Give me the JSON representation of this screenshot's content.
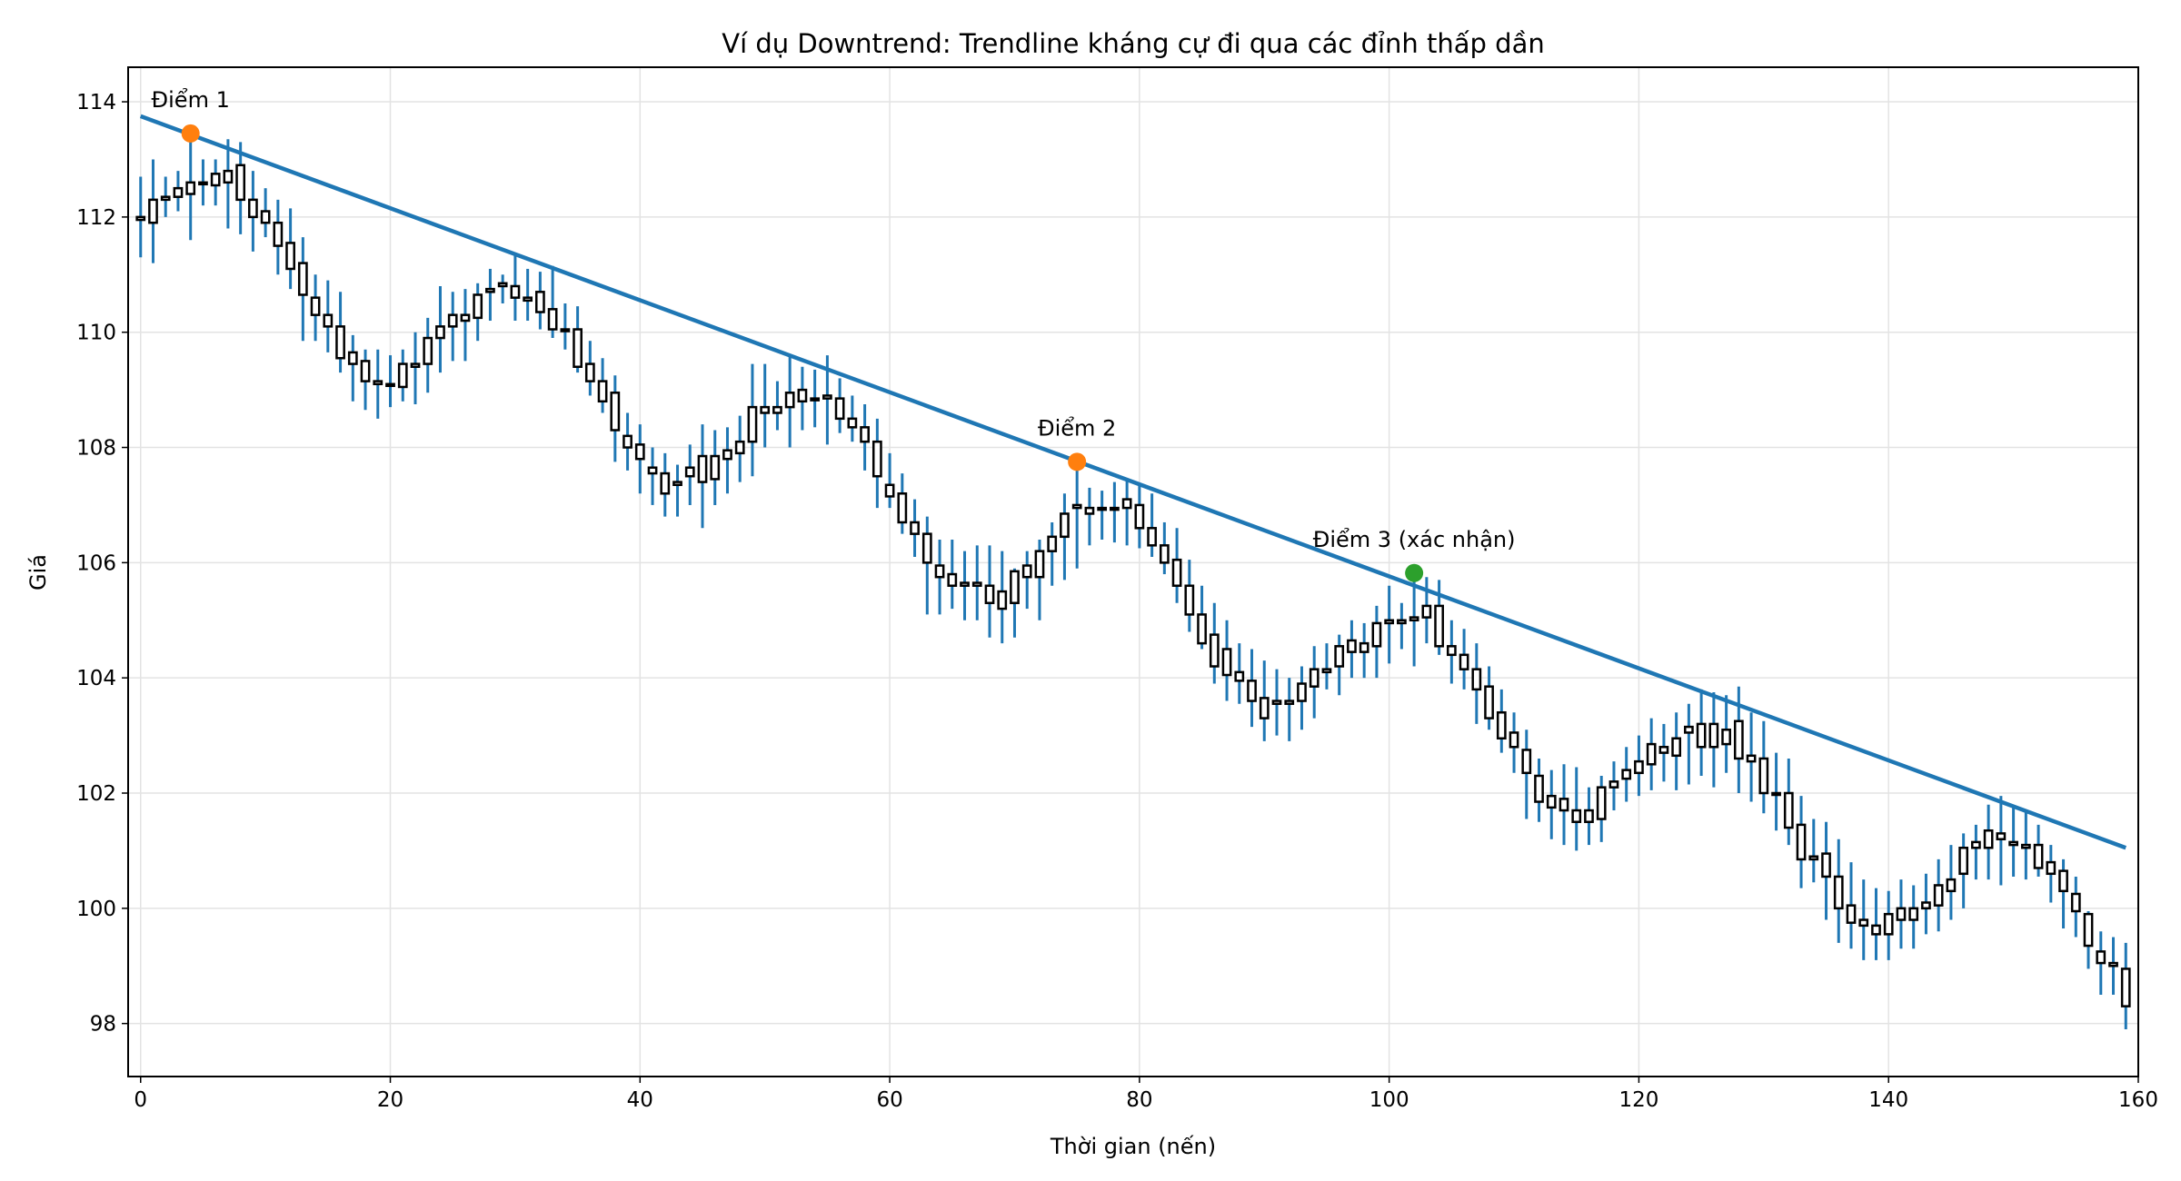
{
  "chart_data": {
    "type": "candlestick",
    "title": "Ví dụ Downtrend: Trendline kháng cự đi qua các đỉnh thấp dần",
    "xlabel": "Thời gian (nến)",
    "ylabel": "Giá",
    "xlim": [
      -1,
      160
    ],
    "ylim": [
      97.08,
      114.6
    ],
    "xticks": [
      0,
      20,
      40,
      60,
      80,
      100,
      120,
      140,
      160
    ],
    "yticks": [
      98,
      100,
      102,
      104,
      106,
      108,
      110,
      112,
      114
    ],
    "grid": true,
    "colors": {
      "wick": "#1f77b4",
      "body_edge": "#000000",
      "body_fill": "#ffffff",
      "trendline": "#1f77b4",
      "point_1": "#ff7f0e",
      "point_2": "#ff7f0e",
      "point_3": "#2ca02c",
      "grid": "#e3e3e3"
    },
    "candle_fields": [
      "open",
      "high",
      "low",
      "close"
    ],
    "candles": [
      [
        111.95,
        112.7,
        111.3,
        112.0
      ],
      [
        111.9,
        113.0,
        111.2,
        112.3
      ],
      [
        112.3,
        112.7,
        112.0,
        112.35
      ],
      [
        112.35,
        112.8,
        112.1,
        112.5
      ],
      [
        112.4,
        113.45,
        111.6,
        112.6
      ],
      [
        112.6,
        113.0,
        112.2,
        112.6
      ],
      [
        112.55,
        113.0,
        112.2,
        112.75
      ],
      [
        112.6,
        113.35,
        111.8,
        112.8
      ],
      [
        112.9,
        113.3,
        111.7,
        112.3
      ],
      [
        112.3,
        112.8,
        111.4,
        112.0
      ],
      [
        112.1,
        112.5,
        111.65,
        111.9
      ],
      [
        111.9,
        112.3,
        111.0,
        111.5
      ],
      [
        111.55,
        112.15,
        110.75,
        111.1
      ],
      [
        111.2,
        111.65,
        109.85,
        110.65
      ],
      [
        110.6,
        111.0,
        109.85,
        110.3
      ],
      [
        110.3,
        110.9,
        109.65,
        110.1
      ],
      [
        110.1,
        110.7,
        109.3,
        109.55
      ],
      [
        109.65,
        109.95,
        108.8,
        109.45
      ],
      [
        109.5,
        109.7,
        108.65,
        109.15
      ],
      [
        109.15,
        109.7,
        108.5,
        109.1
      ],
      [
        109.1,
        109.6,
        108.7,
        109.1
      ],
      [
        109.05,
        109.7,
        108.8,
        109.45
      ],
      [
        109.4,
        110.0,
        108.75,
        109.45
      ],
      [
        109.45,
        110.25,
        108.95,
        109.9
      ],
      [
        109.9,
        110.8,
        109.3,
        110.1
      ],
      [
        110.1,
        110.7,
        109.5,
        110.3
      ],
      [
        110.2,
        110.75,
        109.5,
        110.3
      ],
      [
        110.25,
        110.85,
        109.85,
        110.65
      ],
      [
        110.7,
        111.1,
        110.2,
        110.75
      ],
      [
        110.8,
        111.0,
        110.5,
        110.85
      ],
      [
        110.8,
        111.35,
        110.2,
        110.6
      ],
      [
        110.6,
        111.1,
        110.2,
        110.55
      ],
      [
        110.7,
        111.05,
        110.05,
        110.35
      ],
      [
        110.4,
        111.15,
        109.9,
        110.05
      ],
      [
        110.05,
        110.5,
        109.7,
        110.05
      ],
      [
        110.05,
        110.45,
        109.3,
        109.4
      ],
      [
        109.45,
        109.85,
        108.9,
        109.15
      ],
      [
        109.15,
        109.55,
        108.6,
        108.8
      ],
      [
        108.95,
        109.25,
        107.75,
        108.3
      ],
      [
        108.2,
        108.6,
        107.6,
        108.0
      ],
      [
        108.05,
        108.4,
        107.2,
        107.8
      ],
      [
        107.65,
        108.0,
        107.0,
        107.55
      ],
      [
        107.55,
        107.9,
        106.8,
        107.2
      ],
      [
        107.35,
        107.7,
        106.8,
        107.4
      ],
      [
        107.5,
        108.05,
        107.0,
        107.65
      ],
      [
        107.85,
        108.4,
        106.6,
        107.4
      ],
      [
        107.45,
        108.3,
        107.0,
        107.85
      ],
      [
        107.8,
        108.35,
        107.2,
        107.95
      ],
      [
        107.9,
        108.55,
        107.4,
        108.1
      ],
      [
        108.1,
        109.45,
        107.5,
        108.7
      ],
      [
        108.6,
        109.45,
        108.0,
        108.7
      ],
      [
        108.6,
        109.15,
        108.3,
        108.7
      ],
      [
        108.95,
        109.6,
        108.0,
        108.7
      ],
      [
        108.8,
        109.4,
        108.3,
        109.0
      ],
      [
        108.85,
        109.35,
        108.35,
        108.85
      ],
      [
        108.9,
        109.6,
        108.05,
        108.85
      ],
      [
        108.85,
        109.2,
        108.25,
        108.5
      ],
      [
        108.5,
        108.9,
        108.1,
        108.35
      ],
      [
        108.35,
        108.75,
        107.6,
        108.1
      ],
      [
        108.1,
        108.5,
        106.95,
        107.5
      ],
      [
        107.35,
        107.9,
        106.95,
        107.15
      ],
      [
        107.2,
        107.55,
        106.5,
        106.7
      ],
      [
        106.7,
        107.1,
        106.1,
        106.5
      ],
      [
        106.5,
        106.8,
        105.1,
        106.0
      ],
      [
        105.95,
        106.4,
        105.1,
        105.75
      ],
      [
        105.8,
        106.4,
        105.2,
        105.6
      ],
      [
        105.65,
        106.2,
        105.0,
        105.6
      ],
      [
        105.65,
        106.3,
        105.0,
        105.6
      ],
      [
        105.6,
        106.3,
        104.7,
        105.3
      ],
      [
        105.5,
        106.2,
        104.6,
        105.2
      ],
      [
        105.3,
        105.9,
        104.7,
        105.85
      ],
      [
        105.75,
        106.2,
        105.2,
        105.95
      ],
      [
        105.75,
        106.4,
        105.0,
        106.2
      ],
      [
        106.2,
        106.7,
        105.6,
        106.45
      ],
      [
        106.45,
        107.2,
        105.7,
        106.85
      ],
      [
        106.95,
        107.75,
        105.9,
        107.0
      ],
      [
        106.85,
        107.3,
        106.3,
        106.95
      ],
      [
        106.95,
        107.25,
        106.4,
        106.95
      ],
      [
        106.95,
        107.4,
        106.35,
        106.95
      ],
      [
        106.95,
        107.45,
        106.3,
        107.1
      ],
      [
        107.0,
        107.35,
        106.25,
        106.6
      ],
      [
        106.6,
        107.2,
        106.1,
        106.3
      ],
      [
        106.3,
        106.7,
        105.8,
        106.0
      ],
      [
        106.05,
        106.6,
        105.3,
        105.6
      ],
      [
        105.6,
        106.05,
        104.8,
        105.1
      ],
      [
        105.1,
        105.6,
        104.5,
        104.6
      ],
      [
        104.75,
        105.3,
        103.9,
        104.2
      ],
      [
        104.5,
        105.0,
        103.6,
        104.05
      ],
      [
        104.1,
        104.6,
        103.55,
        103.95
      ],
      [
        103.95,
        104.5,
        103.15,
        103.6
      ],
      [
        103.65,
        104.3,
        102.9,
        103.3
      ],
      [
        103.6,
        104.15,
        103.0,
        103.55
      ],
      [
        103.55,
        104.0,
        102.9,
        103.6
      ],
      [
        103.6,
        104.2,
        103.1,
        103.9
      ],
      [
        103.85,
        104.55,
        103.3,
        104.15
      ],
      [
        104.1,
        104.6,
        103.8,
        104.15
      ],
      [
        104.2,
        104.75,
        103.7,
        104.55
      ],
      [
        104.45,
        105.0,
        104.0,
        104.65
      ],
      [
        104.45,
        104.95,
        104.0,
        104.6
      ],
      [
        104.55,
        105.25,
        104.0,
        104.95
      ],
      [
        104.95,
        105.6,
        104.25,
        105.0
      ],
      [
        104.95,
        105.3,
        104.5,
        105.0
      ],
      [
        105.0,
        105.82,
        104.2,
        105.05
      ],
      [
        105.05,
        105.75,
        104.6,
        105.25
      ],
      [
        105.25,
        105.7,
        104.4,
        104.55
      ],
      [
        104.55,
        105.0,
        103.9,
        104.4
      ],
      [
        104.4,
        104.85,
        103.8,
        104.15
      ],
      [
        104.15,
        104.6,
        103.2,
        103.8
      ],
      [
        103.85,
        104.2,
        103.1,
        103.3
      ],
      [
        103.4,
        103.8,
        102.7,
        102.95
      ],
      [
        103.05,
        103.4,
        102.35,
        102.8
      ],
      [
        102.75,
        103.1,
        101.55,
        102.35
      ],
      [
        102.3,
        102.6,
        101.5,
        101.85
      ],
      [
        101.95,
        102.4,
        101.2,
        101.75
      ],
      [
        101.9,
        102.5,
        101.1,
        101.7
      ],
      [
        101.7,
        102.45,
        101.0,
        101.5
      ],
      [
        101.5,
        102.1,
        101.1,
        101.7
      ],
      [
        101.55,
        102.3,
        101.15,
        102.1
      ],
      [
        102.1,
        102.55,
        101.7,
        102.2
      ],
      [
        102.25,
        102.8,
        101.85,
        102.4
      ],
      [
        102.35,
        103.0,
        101.95,
        102.55
      ],
      [
        102.5,
        103.3,
        102.05,
        102.85
      ],
      [
        102.7,
        103.2,
        102.2,
        102.8
      ],
      [
        102.65,
        103.4,
        102.05,
        102.95
      ],
      [
        103.05,
        103.55,
        102.15,
        103.15
      ],
      [
        102.8,
        103.8,
        102.3,
        103.2
      ],
      [
        103.2,
        103.75,
        102.1,
        102.8
      ],
      [
        103.1,
        103.7,
        102.35,
        102.85
      ],
      [
        103.25,
        103.85,
        102.0,
        102.6
      ],
      [
        102.65,
        103.4,
        101.85,
        102.55
      ],
      [
        102.6,
        103.25,
        101.65,
        102.0
      ],
      [
        102.0,
        102.7,
        101.35,
        102.0
      ],
      [
        102.0,
        102.6,
        101.1,
        101.4
      ],
      [
        101.45,
        101.95,
        100.35,
        100.85
      ],
      [
        100.9,
        101.55,
        100.45,
        100.85
      ],
      [
        100.95,
        101.5,
        99.8,
        100.55
      ],
      [
        100.55,
        101.2,
        99.4,
        100.0
      ],
      [
        100.05,
        100.8,
        99.3,
        99.75
      ],
      [
        99.8,
        100.5,
        99.1,
        99.7
      ],
      [
        99.7,
        100.35,
        99.1,
        99.55
      ],
      [
        99.55,
        100.3,
        99.1,
        99.9
      ],
      [
        99.8,
        100.5,
        99.3,
        100.0
      ],
      [
        99.8,
        100.4,
        99.3,
        100.0
      ],
      [
        100.0,
        100.6,
        99.55,
        100.1
      ],
      [
        100.05,
        100.85,
        99.6,
        100.4
      ],
      [
        100.3,
        101.1,
        99.8,
        100.5
      ],
      [
        100.6,
        101.3,
        100.0,
        101.05
      ],
      [
        101.05,
        101.45,
        100.5,
        101.15
      ],
      [
        101.05,
        101.8,
        100.5,
        101.35
      ],
      [
        101.2,
        101.95,
        100.4,
        101.3
      ],
      [
        101.15,
        101.75,
        100.55,
        101.1
      ],
      [
        101.05,
        101.7,
        100.5,
        101.1
      ],
      [
        100.7,
        101.45,
        100.55,
        101.1
      ],
      [
        100.6,
        101.1,
        100.1,
        100.8
      ],
      [
        100.3,
        100.85,
        99.65,
        100.65
      ],
      [
        99.95,
        100.55,
        99.5,
        100.25
      ],
      [
        99.35,
        99.95,
        98.95,
        99.9
      ],
      [
        99.05,
        99.6,
        98.5,
        99.25
      ],
      [
        99.0,
        99.5,
        98.5,
        99.05
      ],
      [
        98.3,
        99.4,
        97.9,
        98.95
      ]
    ],
    "trendline": {
      "x": [
        0,
        159
      ],
      "y": [
        113.75,
        101.05
      ]
    },
    "points": [
      {
        "label": "Điểm 1",
        "x": 4,
        "y": 113.45,
        "color": "#ff7f0e"
      },
      {
        "label": "Điểm 2",
        "x": 75,
        "y": 107.75,
        "color": "#ff7f0e"
      },
      {
        "label": "Điểm 3 (xác nhận)",
        "x": 102,
        "y": 105.82,
        "color": "#2ca02c"
      }
    ]
  }
}
